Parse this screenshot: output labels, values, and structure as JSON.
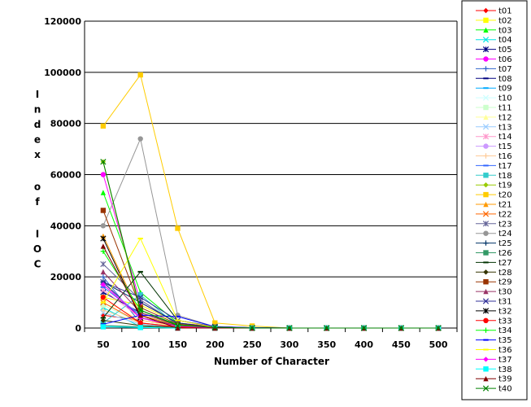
{
  "chart_data": {
    "type": "line",
    "title": "",
    "xlabel": "Number of Character",
    "ylabel": "Index of IOC",
    "x": [
      50,
      100,
      150,
      200,
      250,
      300,
      350,
      400,
      450,
      500
    ],
    "ylim": [
      0,
      120000
    ],
    "yticks": [
      0,
      20000,
      40000,
      60000,
      80000,
      100000,
      120000
    ],
    "grid": "horizontal",
    "legend_position": "right",
    "series": [
      {
        "name": "t01",
        "color": "#ff0000",
        "marker": "diamond",
        "values": [
          5000,
          3000,
          1000,
          300,
          100,
          0,
          0,
          0,
          0,
          0
        ]
      },
      {
        "name": "t02",
        "color": "#ffff00",
        "marker": "square",
        "values": [
          12000,
          9000,
          2000,
          500,
          200,
          0,
          0,
          0,
          0,
          0
        ]
      },
      {
        "name": "t03",
        "color": "#00ff00",
        "marker": "triangle",
        "values": [
          53000,
          14000,
          2000,
          500,
          100,
          0,
          0,
          0,
          0,
          0
        ]
      },
      {
        "name": "t04",
        "color": "#00e5e5",
        "marker": "x",
        "values": [
          8000,
          500,
          300,
          100,
          0,
          0,
          0,
          0,
          0,
          0
        ]
      },
      {
        "name": "t05",
        "color": "#000080",
        "marker": "asterisk",
        "values": [
          14000,
          6000,
          1500,
          400,
          100,
          0,
          0,
          0,
          0,
          0
        ]
      },
      {
        "name": "t06",
        "color": "#ff00ff",
        "marker": "circle",
        "values": [
          60000,
          10000,
          2000,
          500,
          100,
          0,
          0,
          0,
          0,
          0
        ]
      },
      {
        "name": "t07",
        "color": "#3366cc",
        "marker": "plus",
        "values": [
          20000,
          2000,
          500,
          200,
          0,
          0,
          0,
          0,
          0,
          0
        ]
      },
      {
        "name": "t08",
        "color": "#000080",
        "marker": "dash",
        "values": [
          18000,
          4000,
          1000,
          300,
          100,
          0,
          0,
          0,
          0,
          0
        ]
      },
      {
        "name": "t09",
        "color": "#00aaff",
        "marker": "dash",
        "values": [
          1000,
          300,
          100,
          0,
          0,
          0,
          0,
          0,
          0,
          0
        ]
      },
      {
        "name": "t10",
        "color": "#ccffff",
        "marker": "x",
        "values": [
          3000,
          1000,
          200,
          0,
          0,
          0,
          0,
          0,
          0,
          0
        ]
      },
      {
        "name": "t11",
        "color": "#ccffcc",
        "marker": "square",
        "values": [
          9000,
          2000,
          500,
          100,
          0,
          0,
          0,
          0,
          0,
          0
        ]
      },
      {
        "name": "t12",
        "color": "#ffff99",
        "marker": "triangle",
        "values": [
          11000,
          3000,
          600,
          100,
          0,
          0,
          0,
          0,
          0,
          0
        ]
      },
      {
        "name": "t13",
        "color": "#99ccff",
        "marker": "x",
        "values": [
          6000,
          1500,
          300,
          0,
          0,
          0,
          0,
          0,
          0,
          0
        ]
      },
      {
        "name": "t14",
        "color": "#ff99cc",
        "marker": "asterisk",
        "values": [
          15000,
          4000,
          800,
          200,
          0,
          0,
          0,
          0,
          0,
          0
        ]
      },
      {
        "name": "t15",
        "color": "#cc99ff",
        "marker": "circle",
        "values": [
          17000,
          5000,
          1000,
          200,
          0,
          0,
          0,
          0,
          0,
          0
        ]
      },
      {
        "name": "t16",
        "color": "#ffcc99",
        "marker": "plus",
        "values": [
          7000,
          2000,
          400,
          100,
          0,
          0,
          0,
          0,
          0,
          0
        ]
      },
      {
        "name": "t17",
        "color": "#3366ff",
        "marker": "dash",
        "values": [
          16000,
          5000,
          1000,
          300,
          0,
          0,
          0,
          0,
          0,
          0
        ]
      },
      {
        "name": "t18",
        "color": "#33cccc",
        "marker": "square",
        "values": [
          2000,
          13000,
          800,
          200,
          0,
          0,
          0,
          0,
          0,
          0
        ]
      },
      {
        "name": "t19",
        "color": "#99cc00",
        "marker": "diamond",
        "values": [
          65000,
          6000,
          1200,
          300,
          100,
          0,
          0,
          0,
          0,
          0
        ]
      },
      {
        "name": "t20",
        "color": "#ffcc00",
        "marker": "square",
        "values": [
          79000,
          99000,
          39000,
          2000,
          800,
          0,
          0,
          0,
          0,
          0
        ]
      },
      {
        "name": "t21",
        "color": "#ff9900",
        "marker": "triangle",
        "values": [
          36000,
          5000,
          1000,
          200,
          0,
          0,
          0,
          0,
          0,
          0
        ]
      },
      {
        "name": "t22",
        "color": "#ff6600",
        "marker": "x",
        "values": [
          10000,
          2000,
          500,
          100,
          0,
          0,
          0,
          0,
          0,
          0
        ]
      },
      {
        "name": "t23",
        "color": "#666699",
        "marker": "asterisk",
        "values": [
          25000,
          11000,
          1500,
          300,
          0,
          0,
          0,
          0,
          0,
          0
        ]
      },
      {
        "name": "t24",
        "color": "#969696",
        "marker": "circle",
        "values": [
          40000,
          74000,
          5000,
          500,
          100,
          0,
          0,
          0,
          0,
          0
        ]
      },
      {
        "name": "t25",
        "color": "#003366",
        "marker": "plus",
        "values": [
          18000,
          10000,
          2000,
          300,
          0,
          0,
          0,
          0,
          0,
          0
        ]
      },
      {
        "name": "t26",
        "color": "#339966",
        "marker": "square",
        "values": [
          1000,
          500,
          100,
          0,
          0,
          0,
          0,
          0,
          0,
          0
        ]
      },
      {
        "name": "t27",
        "color": "#003300",
        "marker": "dash",
        "values": [
          4000,
          22000,
          3000,
          500,
          100,
          0,
          0,
          0,
          0,
          0
        ]
      },
      {
        "name": "t28",
        "color": "#333300",
        "marker": "diamond",
        "values": [
          3000,
          1000,
          200,
          0,
          0,
          0,
          0,
          0,
          0,
          0
        ]
      },
      {
        "name": "t29",
        "color": "#993300",
        "marker": "square",
        "values": [
          46000,
          8000,
          1500,
          300,
          0,
          0,
          0,
          0,
          0,
          0
        ]
      },
      {
        "name": "t30",
        "color": "#993366",
        "marker": "triangle",
        "values": [
          22000,
          6000,
          1000,
          200,
          0,
          0,
          0,
          0,
          0,
          0
        ]
      },
      {
        "name": "t31",
        "color": "#333399",
        "marker": "x",
        "values": [
          18000,
          12000,
          3000,
          600,
          100,
          0,
          0,
          0,
          0,
          0
        ]
      },
      {
        "name": "t32",
        "color": "#000000",
        "marker": "asterisk",
        "values": [
          35000,
          4000,
          800,
          200,
          0,
          0,
          0,
          0,
          0,
          0
        ]
      },
      {
        "name": "t33",
        "color": "#ff0000",
        "marker": "circle",
        "values": [
          12000,
          2000,
          400,
          100,
          0,
          0,
          0,
          0,
          0,
          0
        ]
      },
      {
        "name": "t34",
        "color": "#00ff00",
        "marker": "plus",
        "values": [
          30000,
          7000,
          1200,
          200,
          0,
          0,
          0,
          0,
          0,
          0
        ]
      },
      {
        "name": "t35",
        "color": "#0000ff",
        "marker": "dash",
        "values": [
          1500,
          5000,
          4500,
          500,
          100,
          0,
          0,
          0,
          0,
          0
        ]
      },
      {
        "name": "t36",
        "color": "#ffff00",
        "marker": "dash",
        "values": [
          10000,
          35000,
          3000,
          300,
          0,
          0,
          0,
          0,
          0,
          0
        ]
      },
      {
        "name": "t37",
        "color": "#ff00ff",
        "marker": "diamond",
        "values": [
          17000,
          4000,
          700,
          100,
          0,
          0,
          0,
          0,
          0,
          0
        ]
      },
      {
        "name": "t38",
        "color": "#00ffff",
        "marker": "square",
        "values": [
          500,
          200,
          0,
          0,
          0,
          0,
          0,
          0,
          0,
          0
        ]
      },
      {
        "name": "t39",
        "color": "#800000",
        "marker": "triangle",
        "values": [
          32000,
          5000,
          0,
          0,
          0,
          0,
          0,
          0,
          0,
          0
        ]
      },
      {
        "name": "t40",
        "color": "#008000",
        "marker": "x",
        "values": [
          65000,
          7000,
          1000,
          300,
          0,
          0,
          0,
          0,
          0,
          0
        ]
      }
    ]
  }
}
